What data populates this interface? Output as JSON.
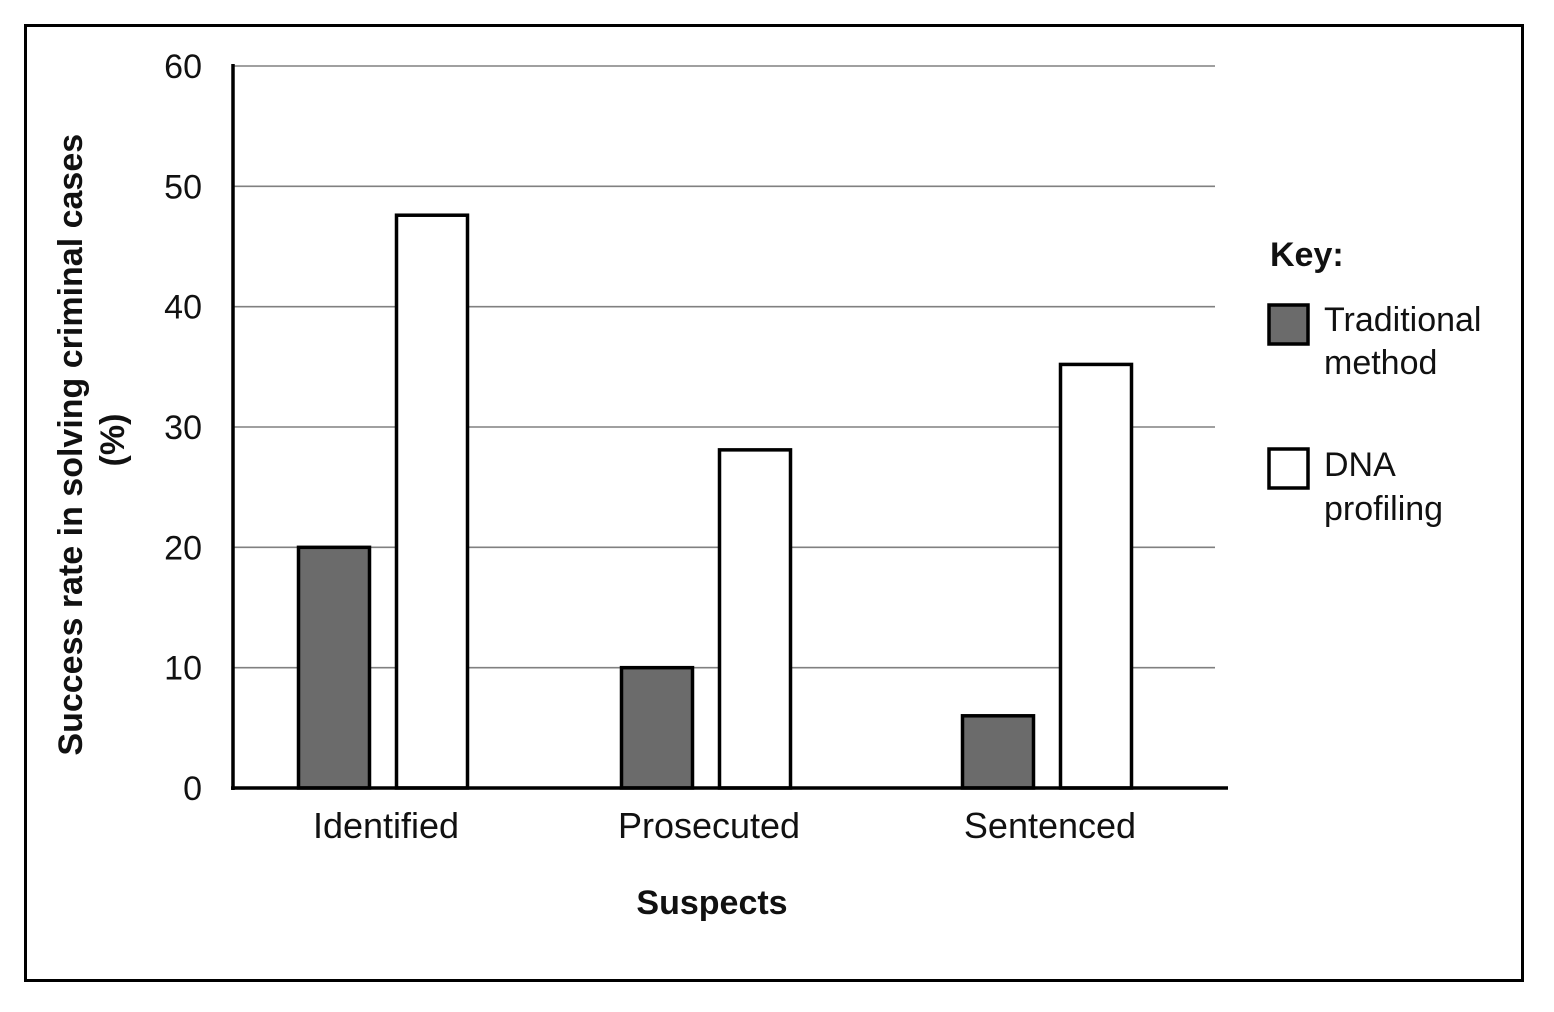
{
  "chart_data": {
    "type": "bar",
    "categories": [
      "Identified",
      "Prosecuted",
      "Sentenced"
    ],
    "series": [
      {
        "name": "Traditional method",
        "name_lines": [
          "Traditional",
          "method"
        ],
        "values": [
          20,
          10,
          6
        ],
        "fill": "#6b6b6b"
      },
      {
        "name": "DNA profiling",
        "name_lines": [
          "DNA",
          "profiling"
        ],
        "values": [
          47.6,
          28.1,
          35.2
        ],
        "fill": "#ffffff"
      }
    ],
    "xlabel": "Suspects",
    "ylabel_lines": [
      "Success rate in solving criminal cases",
      "(%)"
    ],
    "ylim": [
      0,
      60
    ],
    "yticks": [
      0,
      10,
      20,
      30,
      40,
      50,
      60
    ],
    "legend_title": "Key:",
    "legend_position": "right",
    "grid": true,
    "colors": {
      "grid": "#808080",
      "axis": "#000000",
      "bar_edge": "#000000"
    }
  }
}
